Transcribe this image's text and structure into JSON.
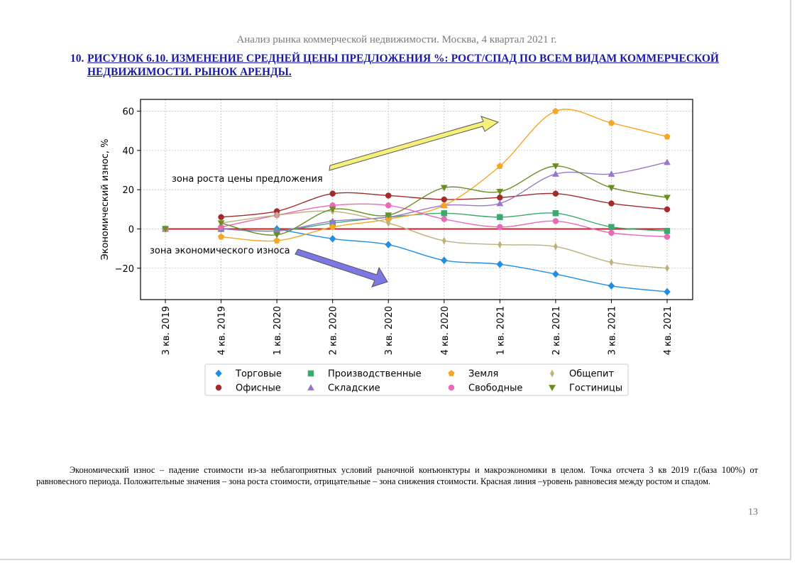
{
  "document": {
    "header": "Анализ рынка коммерческой недвижимости.  Москва, 4 квартал 2021 г.",
    "figure_number": "10.",
    "figure_title": "РИСУНОК 6.10. ИЗМЕНЕНИЕ СРЕДНЕЙ ЦЕНЫ ПРЕДЛОЖЕНИЯ %: РОСТ/СПАД ПО ВСЕМ ВИДАМ КОММЕРЧЕСКОЙ НЕДВИЖИМОСТИ. РЫНОК АРЕНДЫ.",
    "footnote": "Экономический износ – падение стоимости из-за неблагоприятных условий рыночной конъюнктуры и макроэкономики в целом. Точка отсчета 3 кв 2019 г.(база 100%) от равновесного периода. Положительные значения – зона роста стоимости, отрицательные – зона снижения стоимости. Красная линия –уровень равновесия между ростом и спадом.",
    "page_number": "13"
  },
  "colors": {
    "equilibrium_line": "#c0232a",
    "growth_arrow": "#f5f07a",
    "decline_arrow": "#7b77e6"
  },
  "chart_data": {
    "type": "line",
    "ylabel": "Экономический износ, %",
    "xlabel": "",
    "ylim": [
      -36,
      66
    ],
    "yticks": [
      -20,
      0,
      20,
      40,
      60
    ],
    "ytick_labels": [
      "−20",
      "0",
      "20",
      "40",
      "60"
    ],
    "grid": true,
    "categories": [
      "3 кв. 2019",
      "4 кв. 2019",
      "1 кв. 2020",
      "2 кв. 2020",
      "3 кв. 2020",
      "4 кв. 2020",
      "1 кв. 2021",
      "2 кв. 2021",
      "3 кв. 2021",
      "4 кв. 2021"
    ],
    "equilibrium": 0,
    "annotations": [
      "зона роста цены предложения",
      "зона экономического износа"
    ],
    "legend_position": "below",
    "series": [
      {
        "name": "Торговые",
        "color": "#1f8fe5",
        "marker": "diamond",
        "values": [
          0,
          0,
          0,
          -5,
          -8,
          -16,
          -18,
          -23,
          -29,
          -32
        ]
      },
      {
        "name": "Офисные",
        "color": "#a32b2b",
        "marker": "circle",
        "values": [
          0,
          6,
          9,
          18,
          17,
          15,
          16,
          18,
          13,
          10
        ]
      },
      {
        "name": "Производственные",
        "color": "#3aaa6e",
        "marker": "square",
        "values": [
          0,
          0,
          -1,
          3,
          6,
          8,
          6,
          8,
          1,
          -1
        ]
      },
      {
        "name": "Складские",
        "color": "#9b77cc",
        "marker": "triangle-up",
        "values": [
          0,
          0,
          -1,
          4,
          6,
          12,
          13,
          28,
          28,
          34
        ]
      },
      {
        "name": "Земля",
        "color": "#f5a623",
        "marker": "pentagon",
        "values": [
          0,
          -4,
          -6,
          1,
          5,
          12,
          32,
          60,
          54,
          47
        ]
      },
      {
        "name": "Свободные",
        "color": "#ea6ab7",
        "marker": "circle",
        "values": [
          0,
          1,
          7,
          12,
          12,
          5,
          1,
          4,
          -2,
          -4
        ]
      },
      {
        "name": "Общепит",
        "color": "#bcb27a",
        "marker": "thin-diamond",
        "values": [
          0,
          3,
          7,
          9,
          3,
          -6,
          -8,
          -9,
          -17,
          -20
        ]
      },
      {
        "name": "Гостиницы",
        "color": "#6b8e23",
        "marker": "triangle-down",
        "values": [
          0,
          3,
          -3,
          10,
          7,
          21,
          19,
          32,
          21,
          16
        ]
      }
    ]
  }
}
